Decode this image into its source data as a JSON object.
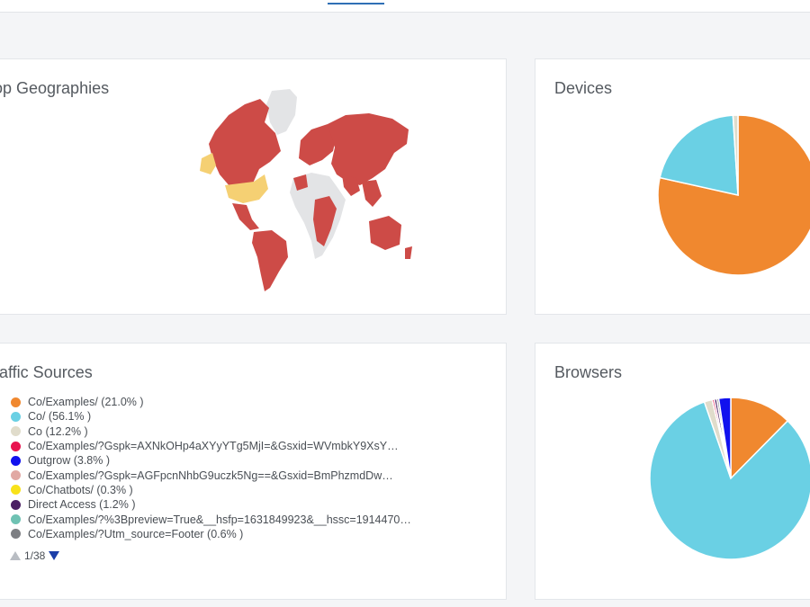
{
  "cards": {
    "geo": {
      "title": "op Geographies"
    },
    "devices": {
      "title": "Devices"
    },
    "traffic": {
      "title": "raffic Sources"
    },
    "browsers": {
      "title": "Browsers"
    }
  },
  "colors": {
    "orange": "#f0882f",
    "cyan": "#6ad0e4",
    "beige": "#e0dccb",
    "crimson": "#e8134f",
    "blue": "#1111ee",
    "rose": "#e1a9a4",
    "yellow": "#f8e21a",
    "purple": "#4a1f63",
    "teal": "#6fc2b3",
    "gray": "#7d7f83",
    "map_red": "#cd4b47",
    "map_yellow": "#f5d073",
    "map_gray": "#e3e4e6"
  },
  "traffic_legend": {
    "items": [
      {
        "label": "Co/Examples/ (21.0% )",
        "color": "#f0882f"
      },
      {
        "label": "Co/ (56.1% )",
        "color": "#6ad0e4"
      },
      {
        "label": "Co (12.2% )",
        "color": "#e0dccb"
      },
      {
        "label": "Co/Examples/?Gspk=AXNkOHp4aXYyYTg5MjI=&Gsxid=WVmbkY9XsY…",
        "color": "#e8134f"
      },
      {
        "label": "Outgrow (3.8% )",
        "color": "#1111ee"
      },
      {
        "label": "Co/Examples/?Gspk=AGFpcnNhbG9uczk5Ng==&Gsxid=BmPhzmdDw…",
        "color": "#e1a9a4"
      },
      {
        "label": "Co/Chatbots/ (0.3% )",
        "color": "#f8e21a"
      },
      {
        "label": "Direct Access (1.2% )",
        "color": "#4a1f63"
      },
      {
        "label": "Co/Examples/?%3Bpreview=True&__hsfp=1631849923&__hssc=1914470…",
        "color": "#6fc2b3"
      },
      {
        "label": "Co/Examples/?Utm_source=Footer (0.6% )",
        "color": "#7d7f83"
      }
    ],
    "pager": {
      "text": "1/38"
    }
  },
  "chart_data": [
    {
      "type": "pie",
      "slices": [
        {
          "value": 78.5,
          "color": "#f0882f"
        },
        {
          "value": 20.5,
          "color": "#6ad0e4"
        },
        {
          "value": 1.0,
          "color": "#e0dccb"
        }
      ]
    },
    {
      "type": "pie",
      "slices": [
        {
          "value": 12.4,
          "color": "#f0882f"
        },
        {
          "value": 82.3,
          "color": "#6ad0e4"
        },
        {
          "value": 1.6,
          "color": "#e0dccb"
        },
        {
          "value": 0.4,
          "color": "#e8134f"
        },
        {
          "value": 0.5,
          "color": "#4a1f63"
        },
        {
          "value": 0.4,
          "color": "#7d7f83"
        },
        {
          "value": 2.4,
          "color": "#1111ee"
        }
      ]
    }
  ]
}
